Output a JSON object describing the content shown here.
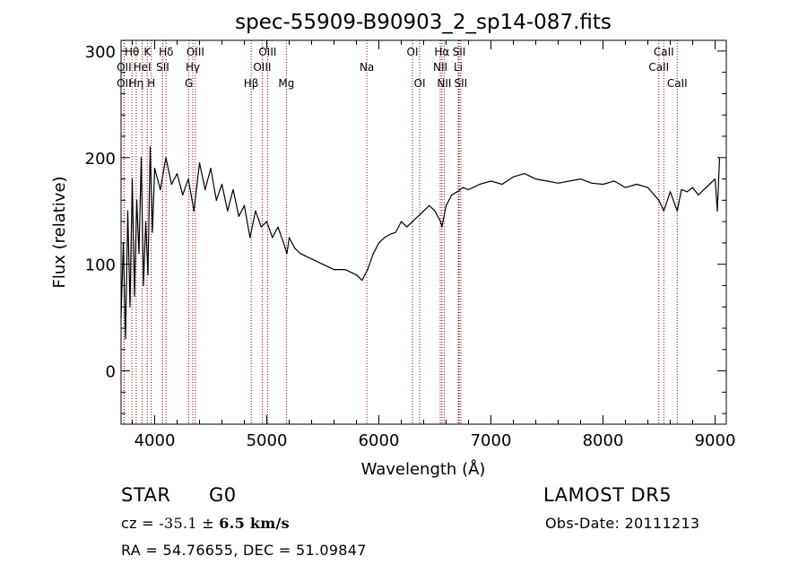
{
  "chart_data": {
    "type": "line",
    "title": "spec-55909-B90903_2_sp14-087.fits",
    "xlabel": "Wavelength (Å)",
    "ylabel": "Flux (relative)",
    "xlim": [
      3700,
      9100
    ],
    "ylim": [
      -50,
      310
    ],
    "xticks": [
      4000,
      5000,
      6000,
      7000,
      8000,
      9000
    ],
    "yticks": [
      0,
      100,
      200,
      300
    ],
    "grid": false,
    "line_color": "#000000",
    "marker_color": "#8b0000",
    "series": [
      {
        "x": [
          3700,
          3720,
          3740,
          3760,
          3780,
          3800,
          3820,
          3840,
          3860,
          3880,
          3900,
          3920,
          3940,
          3960,
          3980,
          4000,
          4050,
          4100,
          4150,
          4200,
          4250,
          4300,
          4350,
          4400,
          4450,
          4500,
          4550,
          4600,
          4650,
          4700,
          4750,
          4800,
          4850,
          4900,
          4950,
          5000,
          5050,
          5100,
          5150,
          5180,
          5200,
          5250,
          5300,
          5400,
          5500,
          5600,
          5700,
          5800,
          5850,
          5900,
          5950,
          6000,
          6050,
          6100,
          6150,
          6200,
          6250,
          6300,
          6350,
          6400,
          6450,
          6500,
          6550,
          6563,
          6600,
          6650,
          6700,
          6750,
          6800,
          6900,
          7000,
          7100,
          7200,
          7300,
          7400,
          7500,
          7600,
          7700,
          7800,
          7900,
          8000,
          8100,
          8200,
          8300,
          8400,
          8498,
          8542,
          8600,
          8662,
          8700,
          8750,
          8800,
          8850,
          8900,
          8950,
          9000,
          9020,
          9040
        ],
        "y": [
          50,
          120,
          30,
          150,
          60,
          180,
          70,
          160,
          110,
          200,
          80,
          140,
          90,
          210,
          130,
          190,
          170,
          200,
          175,
          185,
          165,
          180,
          150,
          195,
          170,
          190,
          160,
          175,
          150,
          170,
          145,
          155,
          125,
          150,
          135,
          140,
          125,
          135,
          120,
          110,
          125,
          115,
          110,
          105,
          100,
          95,
          95,
          90,
          85,
          95,
          110,
          120,
          125,
          128,
          130,
          140,
          135,
          140,
          145,
          150,
          155,
          150,
          140,
          135,
          155,
          165,
          168,
          172,
          170,
          175,
          178,
          175,
          182,
          185,
          180,
          178,
          176,
          178,
          180,
          176,
          175,
          178,
          172,
          175,
          172,
          160,
          150,
          168,
          150,
          170,
          168,
          172,
          165,
          170,
          175,
          180,
          150,
          200
        ]
      }
    ],
    "spectral_lines": [
      {
        "label": "Hθ",
        "wavelength": 3797,
        "row": 0
      },
      {
        "label": "K",
        "wavelength": 3934,
        "row": 0
      },
      {
        "label": "Hδ",
        "wavelength": 4102,
        "row": 0
      },
      {
        "label": "OII",
        "wavelength": 3727,
        "row": 1
      },
      {
        "label": "HeI",
        "wavelength": 3889,
        "row": 1
      },
      {
        "label": "SII",
        "wavelength": 4072,
        "row": 1
      },
      {
        "label": "OII",
        "wavelength": 3727,
        "row": 2
      },
      {
        "label": "Hη",
        "wavelength": 3835,
        "row": 2
      },
      {
        "label": "H",
        "wavelength": 3969,
        "row": 2
      },
      {
        "label": "OIII",
        "wavelength": 4363,
        "row": 0
      },
      {
        "label": "Hγ",
        "wavelength": 4340,
        "row": 1
      },
      {
        "label": "G",
        "wavelength": 4305,
        "row": 2
      },
      {
        "label": "Hβ",
        "wavelength": 4861,
        "row": 2
      },
      {
        "label": "OIII",
        "wavelength": 5007,
        "row": 0
      },
      {
        "label": "OIII",
        "wavelength": 4959,
        "row": 1
      },
      {
        "label": "Mg",
        "wavelength": 5175,
        "row": 2
      },
      {
        "label": "Na",
        "wavelength": 5893,
        "row": 1
      },
      {
        "label": "OI",
        "wavelength": 6300,
        "row": 0
      },
      {
        "label": "OI",
        "wavelength": 6364,
        "row": 2
      },
      {
        "label": "Hα",
        "wavelength": 6563,
        "row": 0
      },
      {
        "label": "SII",
        "wavelength": 6716,
        "row": 0
      },
      {
        "label": "NII",
        "wavelength": 6548,
        "row": 1
      },
      {
        "label": "Li",
        "wavelength": 6708,
        "row": 1
      },
      {
        "label": "NII",
        "wavelength": 6583,
        "row": 2
      },
      {
        "label": "SII",
        "wavelength": 6731,
        "row": 2
      },
      {
        "label": "CaII",
        "wavelength": 8542,
        "row": 0
      },
      {
        "label": "CaII",
        "wavelength": 8498,
        "row": 1
      },
      {
        "label": "CaII",
        "wavelength": 8662,
        "row": 2
      }
    ]
  },
  "info": {
    "object_class": "STAR",
    "subclass": "G0",
    "survey": "LAMOST DR5",
    "cz_prefix": "cz = ",
    "cz_value": "-35.1",
    "cz_pm": " ± ",
    "cz_error": "6.5",
    "cz_unit": " km/s",
    "obs_date": "Obs-Date: 20111213",
    "coords": "RA =  54.76655, DEC =  51.09847"
  }
}
